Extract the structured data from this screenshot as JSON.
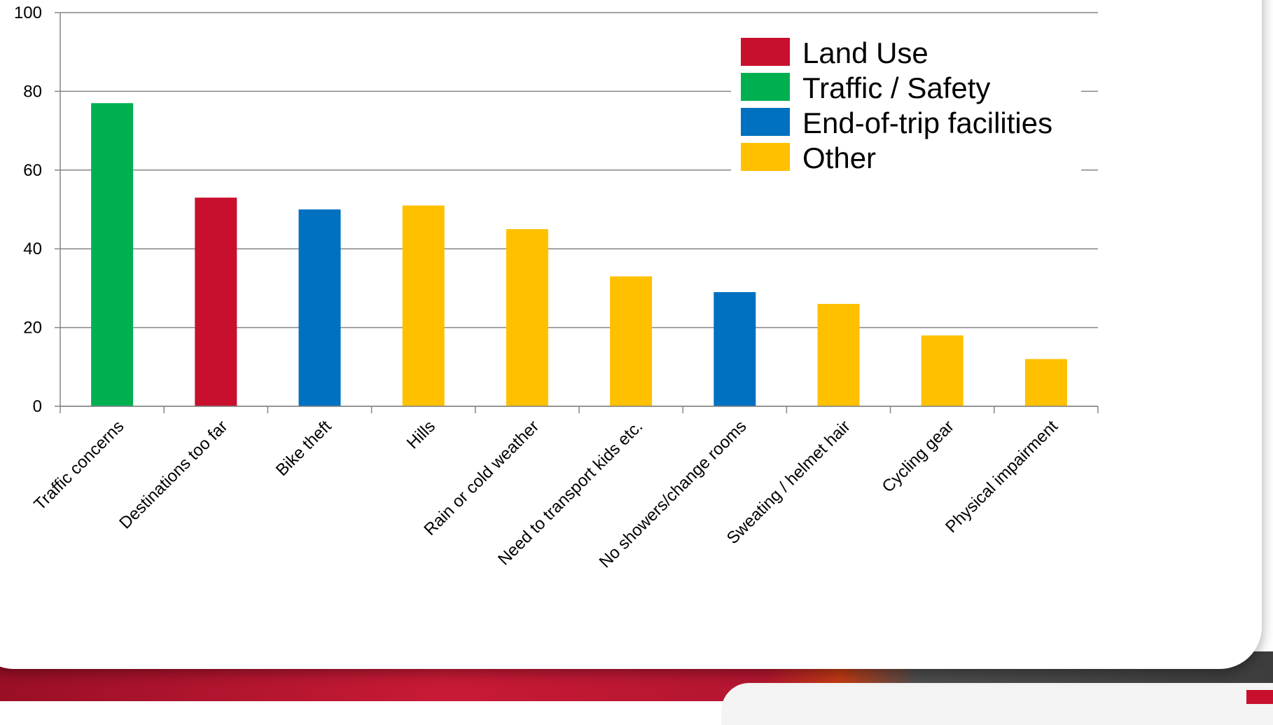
{
  "chart_data": {
    "type": "bar",
    "categories": [
      "Traffic concerns",
      "Destinations too far",
      "Bike theft",
      "Hills",
      "Rain or cold weather",
      "Need to transport kids etc.",
      "No showers/change rooms",
      "Sweating / helmet hair",
      "Cycling gear",
      "Physical impairment"
    ],
    "values": [
      77,
      53,
      50,
      51,
      45,
      33,
      29,
      26,
      18,
      12
    ],
    "groups": [
      "Traffic / Safety",
      "Land Use",
      "End-of-trip facilities",
      "Other",
      "Other",
      "Other",
      "End-of-trip facilities",
      "Other",
      "Other",
      "Other"
    ],
    "legend": [
      {
        "label": "Land Use",
        "color": "#c8102e"
      },
      {
        "label": "Traffic / Safety",
        "color": "#00b050"
      },
      {
        "label": "End-of-trip facilities",
        "color": "#0070c0"
      },
      {
        "label": "Other",
        "color": "#ffc000"
      }
    ],
    "legend_position": "top-right",
    "y_ticks": [
      0,
      20,
      40,
      60,
      80,
      100
    ],
    "ylim": [
      0,
      100
    ],
    "grid": true,
    "title": "",
    "xlabel": "",
    "ylabel": ""
  }
}
